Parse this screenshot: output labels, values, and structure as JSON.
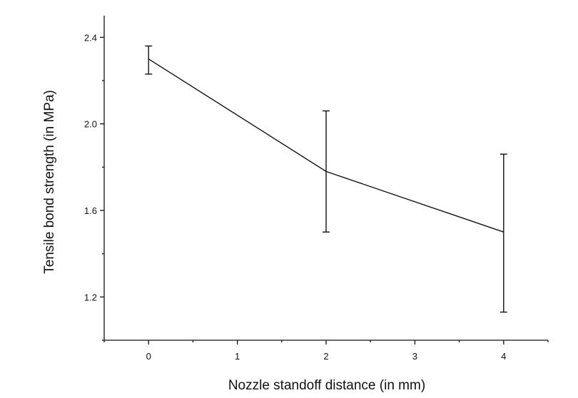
{
  "chart_data": {
    "type": "line",
    "title": "",
    "xlabel": "Nozzle standoff distance (in mm)",
    "ylabel": "Tensile bond strength (in MPa)",
    "xlim": [
      -0.5,
      4.5
    ],
    "ylim": [
      1.0,
      2.5
    ],
    "x_ticks": [
      0,
      1,
      2,
      3,
      4
    ],
    "x_tick_labels": [
      "0",
      "1",
      "2",
      "3",
      "4"
    ],
    "y_ticks": [
      1.2,
      1.6,
      2.0,
      2.4
    ],
    "y_tick_labels": [
      "1.2",
      "1.6",
      "2.0",
      "2.4"
    ],
    "grid": false,
    "series": [
      {
        "x": [
          0,
          2,
          4
        ],
        "y": [
          2.3,
          1.78,
          1.5
        ],
        "error_low": [
          2.23,
          1.5,
          1.13
        ],
        "error_high": [
          2.36,
          2.06,
          1.86
        ]
      }
    ]
  }
}
